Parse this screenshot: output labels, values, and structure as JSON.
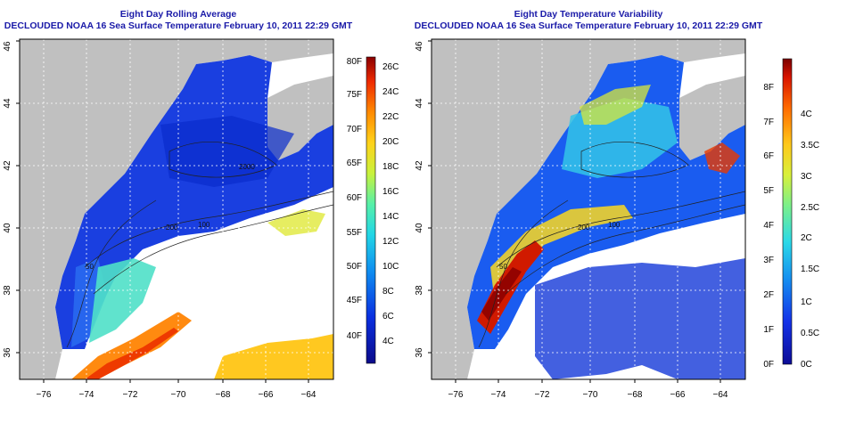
{
  "left_panel": {
    "title_line1": "Eight Day Rolling Average",
    "title_line2": "DECLOUDED NOAA 16 Sea Surface Temperature February 10, 2011 22:29 GMT",
    "colorbar_f": [
      "40F",
      "45F",
      "50F",
      "55F",
      "60F",
      "65F",
      "70F",
      "75F",
      "80F"
    ],
    "colorbar_c": [
      "4C",
      "6C",
      "8C",
      "10C",
      "12C",
      "14C",
      "16C",
      "18C",
      "20C",
      "22C",
      "24C",
      "26C"
    ],
    "contour_labels": [
      "200",
      "50",
      "2000",
      "100"
    ]
  },
  "right_panel": {
    "title_line1": "Eight Day Temperature Variability",
    "title_line2": "DECLOUDED NOAA 16 Sea Surface Temperature February 10, 2011 22:29 GMT",
    "colorbar_f": [
      "0F",
      "1F",
      "2F",
      "3F",
      "4F",
      "5F",
      "6F",
      "7F",
      "8F"
    ],
    "colorbar_c": [
      "0C",
      "0.5C",
      "1C",
      "1.5C",
      "2C",
      "2.5C",
      "3C",
      "3.5C",
      "4C"
    ],
    "contour_labels": [
      "200",
      "50",
      "100"
    ]
  },
  "axes": {
    "lon_ticks": [
      "−76",
      "−74",
      "−72",
      "−70",
      "−68",
      "−66",
      "−64"
    ],
    "lat_ticks": [
      "36",
      "38",
      "40",
      "42",
      "44",
      "46"
    ]
  },
  "colors": {
    "land": "#c0c0c0",
    "title": "#1a1aa8"
  }
}
